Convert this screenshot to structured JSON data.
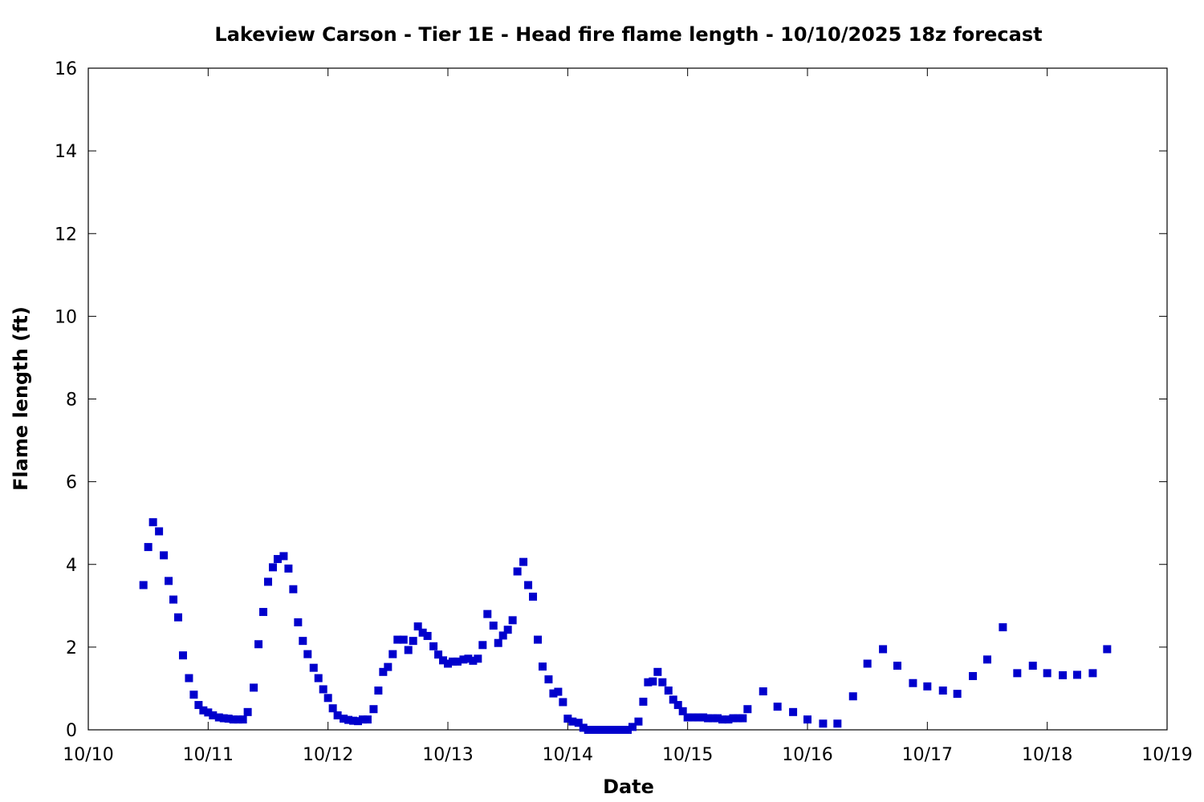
{
  "chart_data": {
    "type": "scatter",
    "title": "Lakeview Carson - Tier 1E - Head fire flame length - 10/10/2025 18z forecast",
    "xlabel": "Date",
    "ylabel": "Flame length (ft)",
    "xlim": [
      0,
      9
    ],
    "ylim": [
      0,
      16
    ],
    "x_ticks": [
      {
        "value": 0,
        "label": "10/10"
      },
      {
        "value": 1,
        "label": "10/11"
      },
      {
        "value": 2,
        "label": "10/12"
      },
      {
        "value": 3,
        "label": "10/13"
      },
      {
        "value": 4,
        "label": "10/14"
      },
      {
        "value": 5,
        "label": "10/15"
      },
      {
        "value": 6,
        "label": "10/16"
      },
      {
        "value": 7,
        "label": "10/17"
      },
      {
        "value": 8,
        "label": "10/18"
      },
      {
        "value": 9,
        "label": "10/19"
      }
    ],
    "y_ticks": [
      0,
      2,
      4,
      6,
      8,
      10,
      12,
      14,
      16
    ],
    "grid": false,
    "legend": "none",
    "marker_color": "#0000cc",
    "series": [
      {
        "points": [
          [
            0.46,
            3.5
          ],
          [
            0.5,
            4.42
          ],
          [
            0.54,
            5.02
          ],
          [
            0.59,
            4.8
          ],
          [
            0.63,
            4.22
          ],
          [
            0.67,
            3.6
          ],
          [
            0.71,
            3.15
          ],
          [
            0.75,
            2.72
          ],
          [
            0.79,
            1.8
          ],
          [
            0.84,
            1.25
          ],
          [
            0.88,
            0.85
          ],
          [
            0.92,
            0.6
          ],
          [
            0.96,
            0.47
          ],
          [
            1.0,
            0.42
          ],
          [
            1.04,
            0.35
          ],
          [
            1.09,
            0.3
          ],
          [
            1.13,
            0.28
          ],
          [
            1.17,
            0.27
          ],
          [
            1.21,
            0.25
          ],
          [
            1.25,
            0.25
          ],
          [
            1.29,
            0.25
          ],
          [
            1.33,
            0.43
          ],
          [
            1.38,
            1.02
          ],
          [
            1.42,
            2.07
          ],
          [
            1.46,
            2.85
          ],
          [
            1.5,
            3.58
          ],
          [
            1.54,
            3.93
          ],
          [
            1.58,
            4.13
          ],
          [
            1.63,
            4.2
          ],
          [
            1.67,
            3.9
          ],
          [
            1.71,
            3.4
          ],
          [
            1.75,
            2.6
          ],
          [
            1.79,
            2.15
          ],
          [
            1.83,
            1.83
          ],
          [
            1.88,
            1.5
          ],
          [
            1.92,
            1.25
          ],
          [
            1.96,
            0.98
          ],
          [
            2.0,
            0.77
          ],
          [
            2.04,
            0.52
          ],
          [
            2.08,
            0.35
          ],
          [
            2.13,
            0.27
          ],
          [
            2.17,
            0.24
          ],
          [
            2.21,
            0.22
          ],
          [
            2.25,
            0.21
          ],
          [
            2.29,
            0.25
          ],
          [
            2.33,
            0.25
          ],
          [
            2.38,
            0.5
          ],
          [
            2.42,
            0.95
          ],
          [
            2.46,
            1.4
          ],
          [
            2.5,
            1.52
          ],
          [
            2.54,
            1.83
          ],
          [
            2.58,
            2.18
          ],
          [
            2.63,
            2.18
          ],
          [
            2.67,
            1.93
          ],
          [
            2.71,
            2.15
          ],
          [
            2.75,
            2.5
          ],
          [
            2.79,
            2.35
          ],
          [
            2.83,
            2.27
          ],
          [
            2.88,
            2.02
          ],
          [
            2.92,
            1.82
          ],
          [
            2.96,
            1.68
          ],
          [
            3.0,
            1.6
          ],
          [
            3.04,
            1.65
          ],
          [
            3.08,
            1.65
          ],
          [
            3.13,
            1.7
          ],
          [
            3.17,
            1.72
          ],
          [
            3.21,
            1.67
          ],
          [
            3.25,
            1.72
          ],
          [
            3.29,
            2.05
          ],
          [
            3.33,
            2.8
          ],
          [
            3.38,
            2.52
          ],
          [
            3.42,
            2.1
          ],
          [
            3.46,
            2.28
          ],
          [
            3.5,
            2.42
          ],
          [
            3.54,
            2.65
          ],
          [
            3.58,
            3.83
          ],
          [
            3.63,
            4.06
          ],
          [
            3.67,
            3.5
          ],
          [
            3.71,
            3.22
          ],
          [
            3.75,
            2.18
          ],
          [
            3.79,
            1.53
          ],
          [
            3.84,
            1.22
          ],
          [
            3.88,
            0.88
          ],
          [
            3.92,
            0.92
          ],
          [
            3.96,
            0.67
          ],
          [
            4.0,
            0.27
          ],
          [
            4.04,
            0.2
          ],
          [
            4.09,
            0.17
          ],
          [
            4.13,
            0.05
          ],
          [
            4.17,
            0.0
          ],
          [
            4.21,
            0.0
          ],
          [
            4.25,
            0.0
          ],
          [
            4.29,
            0.0
          ],
          [
            4.34,
            0.0
          ],
          [
            4.38,
            0.0
          ],
          [
            4.42,
            0.0
          ],
          [
            4.46,
            0.0
          ],
          [
            4.5,
            0.0
          ],
          [
            4.54,
            0.07
          ],
          [
            4.59,
            0.2
          ],
          [
            4.63,
            0.68
          ],
          [
            4.67,
            1.15
          ],
          [
            4.71,
            1.17
          ],
          [
            4.75,
            1.4
          ],
          [
            4.79,
            1.15
          ],
          [
            4.84,
            0.95
          ],
          [
            4.88,
            0.73
          ],
          [
            4.92,
            0.6
          ],
          [
            4.96,
            0.45
          ],
          [
            5.0,
            0.3
          ],
          [
            5.04,
            0.3
          ],
          [
            5.09,
            0.3
          ],
          [
            5.13,
            0.3
          ],
          [
            5.17,
            0.28
          ],
          [
            5.21,
            0.28
          ],
          [
            5.25,
            0.28
          ],
          [
            5.29,
            0.25
          ],
          [
            5.34,
            0.25
          ],
          [
            5.38,
            0.28
          ],
          [
            5.42,
            0.28
          ],
          [
            5.46,
            0.28
          ],
          [
            5.5,
            0.5
          ],
          [
            5.63,
            0.93
          ],
          [
            5.75,
            0.56
          ],
          [
            5.88,
            0.43
          ],
          [
            6.0,
            0.25
          ],
          [
            6.13,
            0.15
          ],
          [
            6.25,
            0.15
          ],
          [
            6.38,
            0.81
          ],
          [
            6.5,
            1.6
          ],
          [
            6.63,
            1.95
          ],
          [
            6.75,
            1.55
          ],
          [
            6.88,
            1.13
          ],
          [
            7.0,
            1.05
          ],
          [
            7.13,
            0.95
          ],
          [
            7.25,
            0.87
          ],
          [
            7.38,
            1.3
          ],
          [
            7.5,
            1.7
          ],
          [
            7.63,
            2.48
          ],
          [
            7.75,
            1.37
          ],
          [
            7.88,
            1.55
          ],
          [
            8.0,
            1.37
          ],
          [
            8.13,
            1.32
          ],
          [
            8.25,
            1.33
          ],
          [
            8.38,
            1.37
          ],
          [
            8.5,
            1.95
          ]
        ]
      }
    ]
  }
}
